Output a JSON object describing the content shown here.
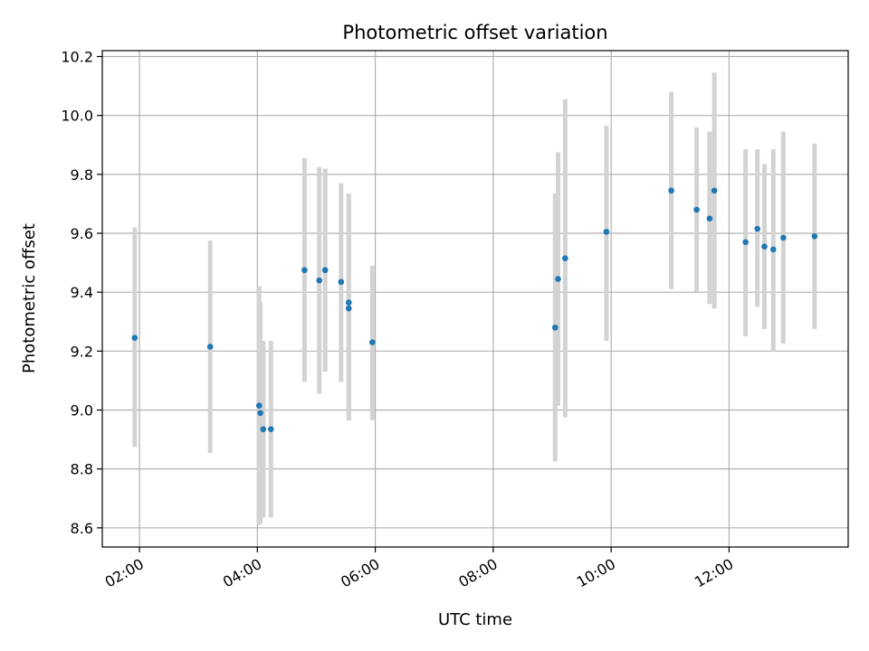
{
  "chart_data": {
    "type": "scatter",
    "title": "Photometric offset variation",
    "xlabel": "UTC time",
    "ylabel": "Photometric offset",
    "x_unit": "hours UTC",
    "xlim": [
      1.37,
      14.02
    ],
    "ylim": [
      8.535,
      10.22
    ],
    "grid": true,
    "x_ticks": [
      {
        "value": 2,
        "label": "02:00"
      },
      {
        "value": 4,
        "label": "04:00"
      },
      {
        "value": 6,
        "label": "06:00"
      },
      {
        "value": 8,
        "label": "08:00"
      },
      {
        "value": 10,
        "label": "10:00"
      },
      {
        "value": 12,
        "label": "12:00"
      }
    ],
    "y_ticks": [
      {
        "value": 8.6,
        "label": "8.6"
      },
      {
        "value": 8.8,
        "label": "8.8"
      },
      {
        "value": 9.0,
        "label": "9.0"
      },
      {
        "value": 9.2,
        "label": "9.2"
      },
      {
        "value": 9.4,
        "label": "9.4"
      },
      {
        "value": 9.6,
        "label": "9.6"
      },
      {
        "value": 9.8,
        "label": "9.8"
      },
      {
        "value": 10.0,
        "label": "10.0"
      },
      {
        "value": 10.2,
        "label": "10.2"
      }
    ],
    "colors": {
      "point": "#1f77b4",
      "errorbar": "#d3d3d3",
      "grid": "#b0b0b0"
    },
    "points": [
      {
        "x": 1.92,
        "y": 9.245,
        "ylow": 8.875,
        "yhigh": 9.62
      },
      {
        "x": 3.2,
        "y": 9.215,
        "ylow": 8.855,
        "yhigh": 9.575
      },
      {
        "x": 4.03,
        "y": 9.015,
        "ylow": 8.61,
        "yhigh": 9.42
      },
      {
        "x": 4.05,
        "y": 8.99,
        "ylow": 8.615,
        "yhigh": 9.365
      },
      {
        "x": 4.1,
        "y": 8.935,
        "ylow": 8.635,
        "yhigh": 9.235
      },
      {
        "x": 4.23,
        "y": 8.935,
        "ylow": 8.635,
        "yhigh": 9.235
      },
      {
        "x": 4.8,
        "y": 9.475,
        "ylow": 9.095,
        "yhigh": 9.855
      },
      {
        "x": 5.05,
        "y": 9.44,
        "ylow": 9.055,
        "yhigh": 9.825
      },
      {
        "x": 5.15,
        "y": 9.475,
        "ylow": 9.13,
        "yhigh": 9.82
      },
      {
        "x": 5.42,
        "y": 9.435,
        "ylow": 9.095,
        "yhigh": 9.77
      },
      {
        "x": 5.55,
        "y": 9.365,
        "ylow": 8.965,
        "yhigh": 9.735
      },
      {
        "x": 5.55,
        "y": 9.345,
        "ylow": 8.965,
        "yhigh": 9.735
      },
      {
        "x": 5.95,
        "y": 9.23,
        "ylow": 8.965,
        "yhigh": 9.49
      },
      {
        "x": 9.05,
        "y": 9.28,
        "ylow": 8.825,
        "yhigh": 9.735
      },
      {
        "x": 9.1,
        "y": 9.445,
        "ylow": 9.015,
        "yhigh": 9.875
      },
      {
        "x": 9.22,
        "y": 9.515,
        "ylow": 8.975,
        "yhigh": 10.055
      },
      {
        "x": 9.92,
        "y": 9.605,
        "ylow": 9.235,
        "yhigh": 9.965
      },
      {
        "x": 11.02,
        "y": 9.745,
        "ylow": 9.41,
        "yhigh": 10.08
      },
      {
        "x": 11.45,
        "y": 9.68,
        "ylow": 9.4,
        "yhigh": 9.96
      },
      {
        "x": 11.67,
        "y": 9.65,
        "ylow": 9.36,
        "yhigh": 9.945
      },
      {
        "x": 11.75,
        "y": 9.745,
        "ylow": 9.345,
        "yhigh": 10.145
      },
      {
        "x": 12.28,
        "y": 9.57,
        "ylow": 9.25,
        "yhigh": 9.885
      },
      {
        "x": 12.48,
        "y": 9.615,
        "ylow": 9.35,
        "yhigh": 9.885
      },
      {
        "x": 12.6,
        "y": 9.555,
        "ylow": 9.275,
        "yhigh": 9.835
      },
      {
        "x": 12.75,
        "y": 9.545,
        "ylow": 9.2,
        "yhigh": 9.885
      },
      {
        "x": 12.92,
        "y": 9.585,
        "ylow": 9.225,
        "yhigh": 9.945
      },
      {
        "x": 13.45,
        "y": 9.59,
        "ylow": 9.275,
        "yhigh": 9.905
      }
    ]
  }
}
